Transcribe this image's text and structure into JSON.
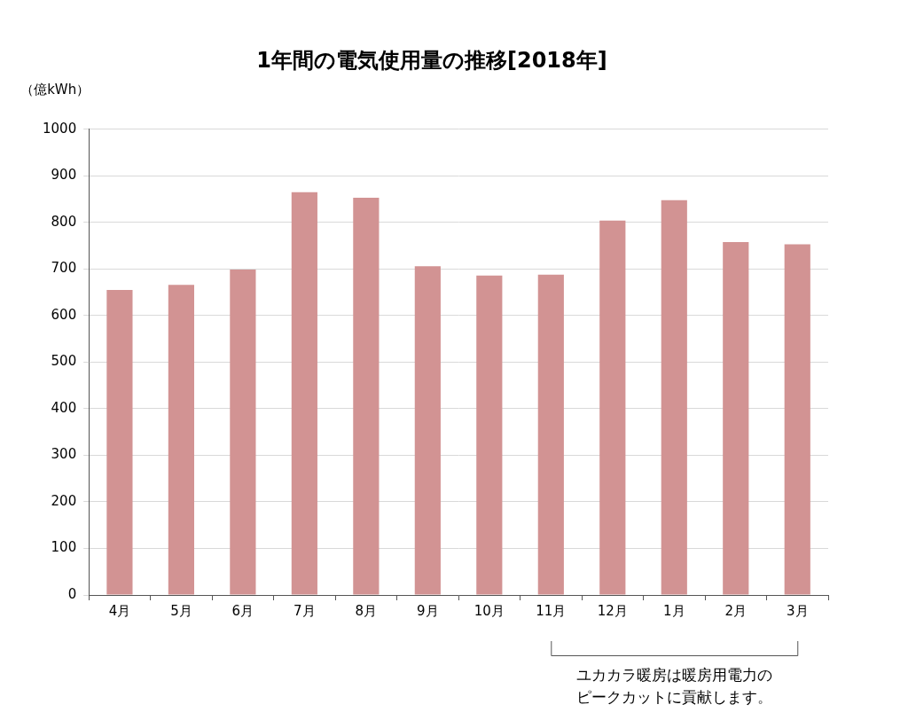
{
  "chart_data": {
    "type": "bar",
    "title": "1年間の電気使用量の推移[2018年]",
    "ylabel": "（億kWh）",
    "categories": [
      "4月",
      "5月",
      "6月",
      "7月",
      "8月",
      "9月",
      "10月",
      "11月",
      "12月",
      "1月",
      "2月",
      "3月"
    ],
    "values": [
      655,
      666,
      699,
      865,
      853,
      706,
      686,
      688,
      804,
      848,
      758,
      753
    ],
    "color": "#d29393",
    "ylim": [
      0,
      1000
    ],
    "yticks": [
      0,
      100,
      200,
      300,
      400,
      500,
      600,
      700,
      800,
      900,
      1000
    ],
    "grid": true,
    "annotation": {
      "text": [
        "ユカカラ暖房は暖房用電力の",
        "ピークカットに貢献します。"
      ],
      "categories": [
        "11月",
        "3月"
      ]
    }
  }
}
